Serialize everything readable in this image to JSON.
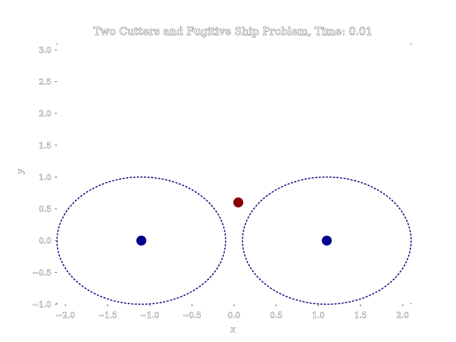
{
  "chart_data": {
    "type": "scatter",
    "title": "Two Cutters and Fugitive Ship Problem, Time: 0.01",
    "xlabel": "x",
    "ylabel": "y",
    "xlim": [
      -2.1,
      2.1
    ],
    "ylim": [
      -1.0,
      3.1
    ],
    "x_ticks": [
      -2.0,
      -1.5,
      -1.0,
      -0.5,
      0.0,
      0.5,
      1.0,
      1.5,
      2.0
    ],
    "x_tick_labels": [
      "−2.0",
      "−1.5",
      "−1.0",
      "−0.5",
      "0.0",
      "0.5",
      "1.0",
      "1.5",
      "2.0"
    ],
    "y_ticks": [
      -1.0,
      -0.5,
      0.0,
      0.5,
      1.0,
      1.5,
      2.0,
      2.5,
      3.0
    ],
    "y_tick_labels": [
      "−1.0",
      "−0.5",
      "0.0",
      "0.5",
      "1.0",
      "1.5",
      "2.0",
      "2.5",
      "3.0"
    ],
    "grid": false,
    "circles": [
      {
        "cx": -1.1,
        "cy": 0.0,
        "r": 1.0,
        "color": "#000080",
        "style": "dashed"
      },
      {
        "cx": 1.1,
        "cy": 0.0,
        "r": 1.0,
        "color": "#000080",
        "style": "dashed"
      }
    ],
    "points": [
      {
        "x": -1.1,
        "y": 0.0,
        "color": "#00008b"
      },
      {
        "x": 1.1,
        "y": 0.0,
        "color": "#00008b"
      },
      {
        "x": 0.05,
        "y": 0.6,
        "color": "#8b0000"
      }
    ]
  }
}
